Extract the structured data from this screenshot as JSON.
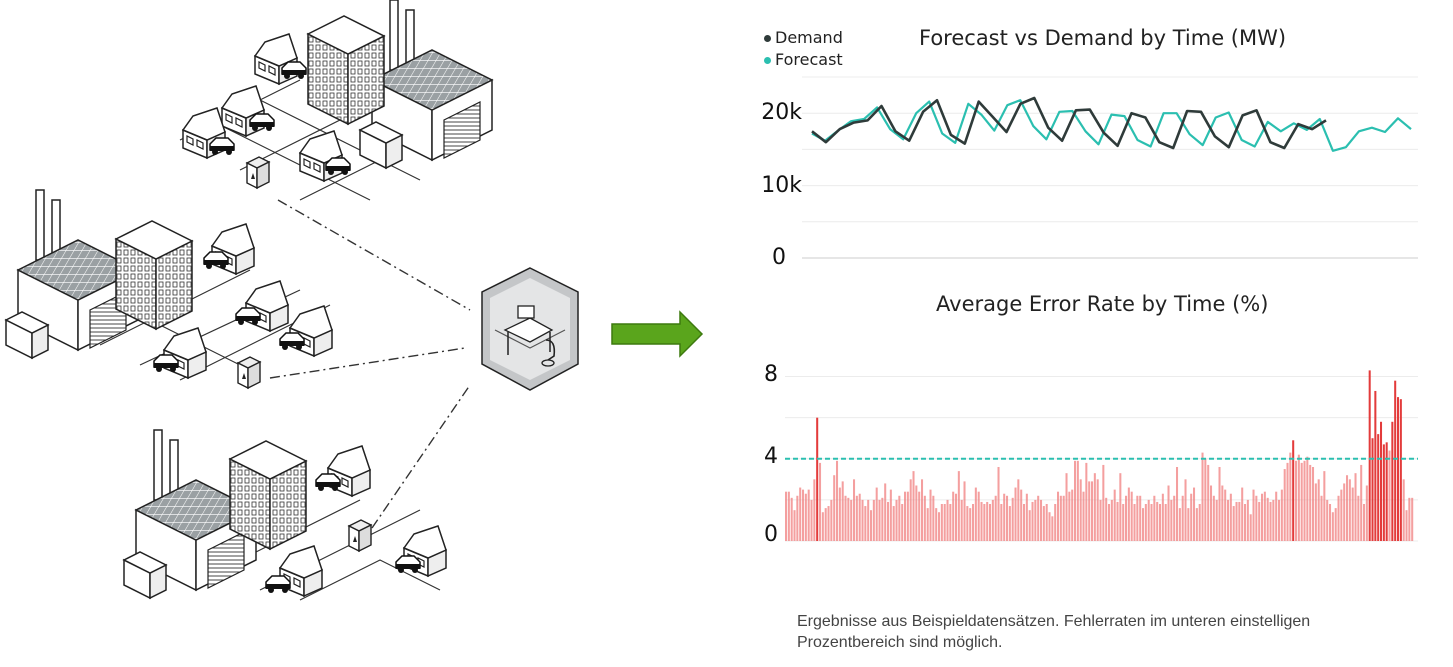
{
  "footnote": "Ergebnisse aus Beispieldatensätzen. Fehlerraten im unteren einstelligen Prozentbereich sind möglich.",
  "colors": {
    "demand": "#2f3b3a",
    "forecast": "#2bbfb0",
    "error_bar": "#f07f7f",
    "error_bar_strong": "#e33b3b",
    "threshold": "#2bbfb0",
    "arrow": "#5aa51c"
  },
  "icons": [
    "factory-building-icon",
    "house-icon",
    "office-building-icon",
    "car-icon",
    "smart-meter-icon",
    "control-center-icon",
    "arrow-right-icon"
  ],
  "chart_data": [
    {
      "type": "line",
      "title": "Forecast vs Demand by Time (MW)",
      "ylim": [
        0,
        25000
      ],
      "yticks": [
        "0",
        "10k",
        "20k"
      ],
      "yticks_values": [
        0,
        10000,
        20000
      ],
      "legend": "top-left",
      "grid": true,
      "series": [
        {
          "name": "Demand",
          "values": [
            17500,
            16000,
            17800,
            18700,
            19000,
            21000,
            17500,
            16200,
            20200,
            21800,
            17000,
            15800,
            21600,
            19500,
            17400,
            21300,
            22100,
            18000,
            16200,
            20400,
            20500,
            17300,
            15500,
            20000,
            19400,
            16000,
            15200,
            20300,
            20200,
            16800,
            15300,
            19700,
            20400,
            16000,
            15200,
            18500,
            17800,
            19000
          ]
        },
        {
          "name": "Forecast",
          "values": [
            17200,
            16200,
            17600,
            18900,
            19200,
            20800,
            17800,
            16400,
            20000,
            21600,
            17200,
            15900,
            21300,
            19800,
            17600,
            21100,
            21800,
            18200,
            16400,
            20200,
            20300,
            17500,
            15700,
            19800,
            19600,
            16300,
            15400,
            20000,
            20000,
            17100,
            15600,
            19400,
            20100,
            16300,
            15400,
            18800,
            17500,
            18600,
            17700,
            19200,
            14800,
            15300,
            17500,
            18000,
            17400,
            19300,
            17800
          ]
        }
      ]
    },
    {
      "type": "bar",
      "title": "Average Error Rate by Time (%)",
      "ylim": [
        0,
        9
      ],
      "yticks": [
        "0",
        "4",
        "8"
      ],
      "yticks_values": [
        0,
        4,
        8
      ],
      "threshold": 4,
      "grid": true,
      "values": [
        2.4,
        2.4,
        2.1,
        1.5,
        2.2,
        2.6,
        2.5,
        2.3,
        2.5,
        2.0,
        3.0,
        6.0,
        3.8,
        1.4,
        1.6,
        1.7,
        2.0,
        3.2,
        3.9,
        2.6,
        2.9,
        2.2,
        2.1,
        2.0,
        3.0,
        2.2,
        2.3,
        2.0,
        1.7,
        2.0,
        1.5,
        2.0,
        2.6,
        2.0,
        2.1,
        2.8,
        1.9,
        2.5,
        1.7,
        2.0,
        2.2,
        1.8,
        2.4,
        2.4,
        3.0,
        3.4,
        2.7,
        2.4,
        3.0,
        2.2,
        1.6,
        2.5,
        2.2,
        1.6,
        1.4,
        1.8,
        1.8,
        2.0,
        1.8,
        2.4,
        2.3,
        3.4,
        2.0,
        2.9,
        1.7,
        1.6,
        1.8,
        2.6,
        2.4,
        1.9,
        1.8,
        1.9,
        1.8,
        2.0,
        2.2,
        3.6,
        1.8,
        2.3,
        2.2,
        1.7,
        2.1,
        2.6,
        3.0,
        2.5,
        1.8,
        2.3,
        1.5,
        1.9,
        2.0,
        2.2,
        2.0,
        1.7,
        1.8,
        1.4,
        1.2,
        1.8,
        2.4,
        2.2,
        2.2,
        3.3,
        2.4,
        2.5,
        3.9,
        3.9,
        3.0,
        2.4,
        3.8,
        2.9,
        2.9,
        3.3,
        3.0,
        2.0,
        3.7,
        2.1,
        1.8,
        2.0,
        2.5,
        1.9,
        3.3,
        1.8,
        2.2,
        2.6,
        2.4,
        1.8,
        2.2,
        2.2,
        1.6,
        1.8,
        2.0,
        1.8,
        2.2,
        1.9,
        1.8,
        2.3,
        1.8,
        2.7,
        2.0,
        2.2,
        3.6,
        1.6,
        2.2,
        3.0,
        1.6,
        2.3,
        2.6,
        1.6,
        1.8,
        4.3,
        4.0,
        3.7,
        2.7,
        2.2,
        2.0,
        3.6,
        2.7,
        2.5,
        2.0,
        2.3,
        1.7,
        1.9,
        1.9,
        2.6,
        1.8,
        2.0,
        1.3,
        2.5,
        2.2,
        1.9,
        2.3,
        2.4,
        2.1,
        1.9,
        2.0,
        2.4,
        2.0,
        2.5,
        3.5,
        3.8,
        4.3,
        4.9,
        3.9,
        4.2,
        3.8,
        3.9,
        4.1,
        3.7,
        3.6,
        2.8,
        3.0,
        2.2,
        3.4,
        2.0,
        1.8,
        1.4,
        1.6,
        2.2,
        2.5,
        2.8,
        3.2,
        3.0,
        2.6,
        3.3,
        2.2,
        3.7,
        1.8,
        2.7,
        8.3,
        5.0,
        7.3,
        5.2,
        5.8,
        4.7,
        4.8,
        4.4,
        5.8,
        7.8,
        7.0,
        6.9,
        3.0,
        1.5,
        2.1,
        2.1
      ]
    }
  ]
}
